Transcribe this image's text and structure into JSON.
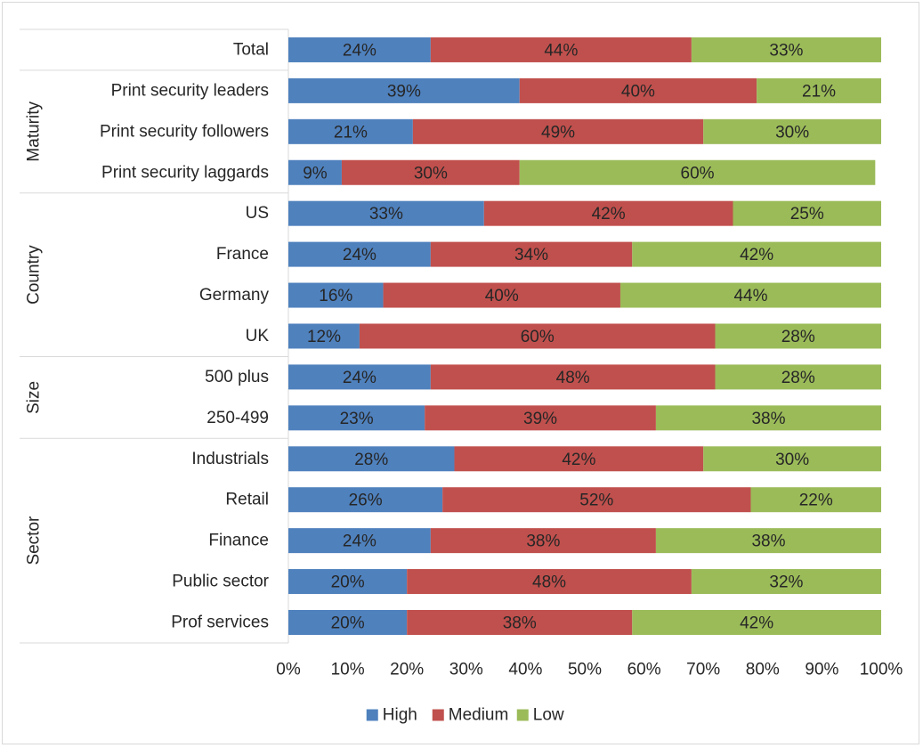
{
  "chart_data": {
    "type": "bar",
    "orientation": "horizontal",
    "stacked": true,
    "percent_stacked": true,
    "groups": [
      {
        "name": "",
        "categories": [
          "Total"
        ]
      },
      {
        "name": "Maturity",
        "categories": [
          "Print security leaders",
          "Print security followers",
          "Print security laggards"
        ]
      },
      {
        "name": "Country",
        "categories": [
          "US",
          "France",
          "Germany",
          "UK"
        ]
      },
      {
        "name": "Size",
        "categories": [
          "500 plus",
          "250-499"
        ]
      },
      {
        "name": "Sector",
        "categories": [
          "Industrials",
          "Retail",
          "Finance",
          "Public sector",
          "Prof services"
        ]
      }
    ],
    "categories": [
      "Total",
      "Print security leaders",
      "Print security followers",
      "Print security laggards",
      "US",
      "France",
      "Germany",
      "UK",
      "500 plus",
      "250-499",
      "Industrials",
      "Retail",
      "Finance",
      "Public sector",
      "Prof services"
    ],
    "series": [
      {
        "name": "High",
        "color": "#4f81bd",
        "values": [
          24,
          39,
          21,
          9,
          33,
          24,
          16,
          12,
          24,
          23,
          28,
          26,
          24,
          20,
          20
        ],
        "labels": [
          "24%",
          "39%",
          "21%",
          "9%",
          "33%",
          "24%",
          "16%",
          "12%",
          "24%",
          "23%",
          "28%",
          "26%",
          "24%",
          "20%",
          "20%"
        ]
      },
      {
        "name": "Medium",
        "color": "#c0504d",
        "values": [
          44,
          40,
          49,
          30,
          42,
          34,
          40,
          60,
          48,
          39,
          42,
          52,
          38,
          48,
          38
        ],
        "labels": [
          "44%",
          "40%",
          "49%",
          "30%",
          "42%",
          "34%",
          "40%",
          "60%",
          "48%",
          "39%",
          "42%",
          "52%",
          "38%",
          "48%",
          "38%"
        ]
      },
      {
        "name": "Low",
        "color": "#9bbb59",
        "values": [
          33,
          21,
          30,
          60,
          25,
          42,
          44,
          28,
          28,
          38,
          30,
          22,
          38,
          32,
          42
        ],
        "labels": [
          "33%",
          "21%",
          "30%",
          "60%",
          "25%",
          "42%",
          "44%",
          "28%",
          "28%",
          "38%",
          "30%",
          "22%",
          "38%",
          "32%",
          "42%"
        ]
      }
    ],
    "xlim": [
      0,
      100
    ],
    "x_ticks": [
      "0%",
      "10%",
      "20%",
      "30%",
      "40%",
      "50%",
      "60%",
      "70%",
      "80%",
      "90%",
      "100%"
    ],
    "grid": false,
    "legend_position": "bottom",
    "title": "",
    "xlabel": "",
    "ylabel": ""
  }
}
